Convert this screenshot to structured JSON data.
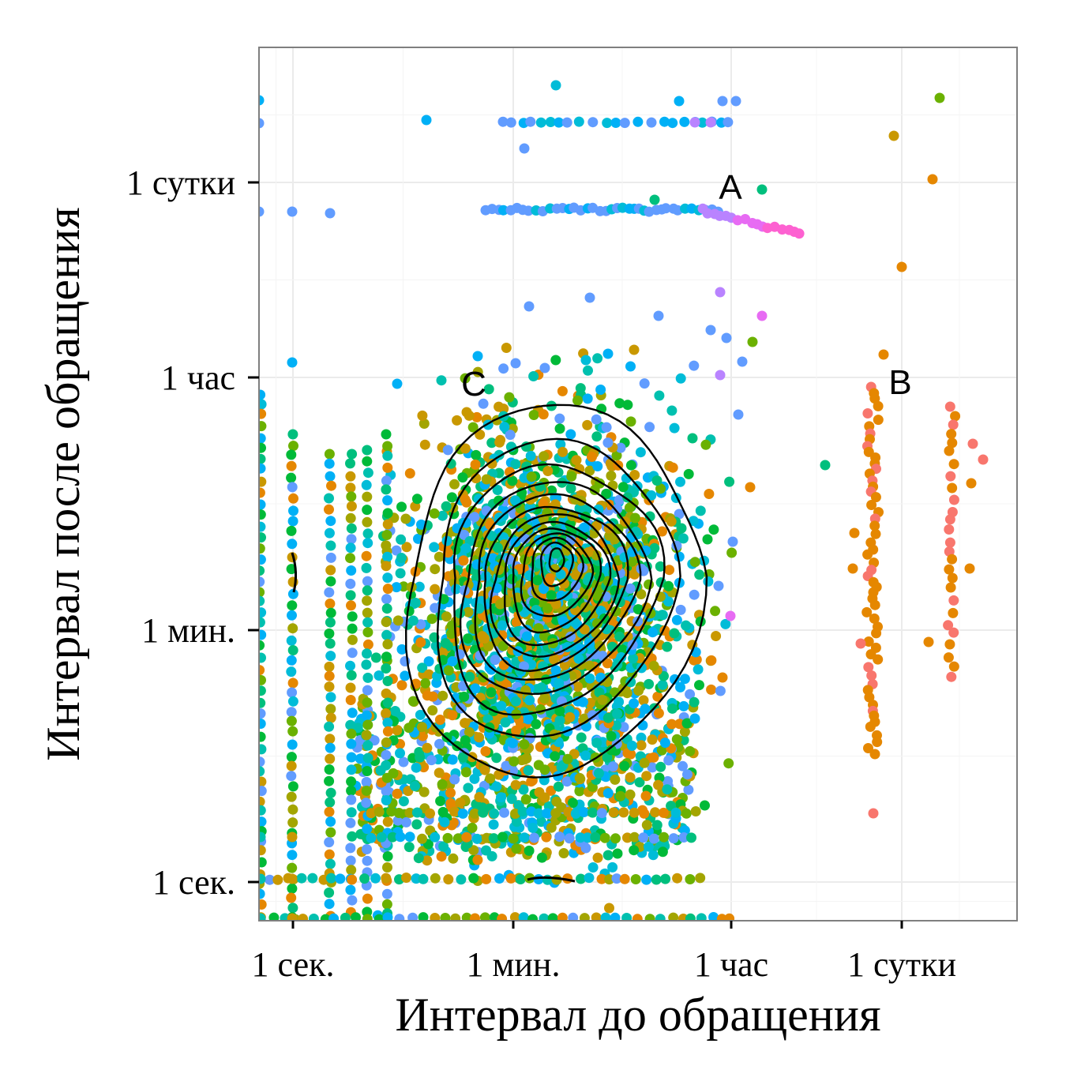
{
  "chart_data": {
    "type": "scatter",
    "title": "",
    "xlabel": "Интервал до обращения",
    "ylabel": "Интервал после обращения",
    "x_scale": "log",
    "y_scale": "log",
    "x_unit": "seconds",
    "y_unit": "seconds",
    "xlim": [
      0.7,
      1500000
    ],
    "ylim": [
      0.7,
      700000
    ],
    "x_ticks": [
      {
        "value": 1,
        "label": "1 сек."
      },
      {
        "value": 60,
        "label": "1 мин."
      },
      {
        "value": 3600,
        "label": "1 час"
      },
      {
        "value": 86400,
        "label": "1 сутки"
      }
    ],
    "y_ticks": [
      {
        "value": 1,
        "label": "1 сек."
      },
      {
        "value": 60,
        "label": "1 мин."
      },
      {
        "value": 3600,
        "label": "1 час"
      },
      {
        "value": 86400,
        "label": "1 сутки"
      }
    ],
    "grid": true,
    "legend": "none",
    "palette": [
      "#F8766D",
      "#E58700",
      "#C99800",
      "#A3A500",
      "#6BB100",
      "#00BA38",
      "#00BF7D",
      "#00C0AF",
      "#00BCD8",
      "#00B0F6",
      "#619CFF",
      "#B983FF",
      "#E76BF3",
      "#FD61D1"
    ],
    "clusters": [
      {
        "label": "A",
        "x": 3600,
        "y": 86400
      },
      {
        "label": "B",
        "x": 86400,
        "y": 3600
      },
      {
        "label": "C",
        "x": 60,
        "y": 3600
      }
    ],
    "contours": "density contours centred near x≈150 s, y≈90 s",
    "annotations": [
      {
        "text": "A",
        "x": 3600,
        "y": 86400
      },
      {
        "text": "B",
        "x": 86400,
        "y": 3600
      },
      {
        "text": "C",
        "x": 60,
        "y": 3600
      }
    ]
  }
}
